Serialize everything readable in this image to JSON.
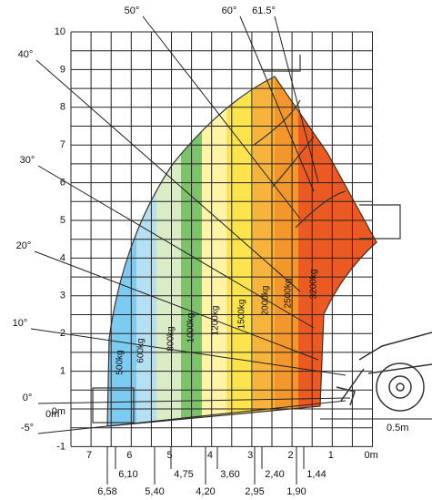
{
  "angles": [
    "50°",
    "60°",
    "61.5°",
    "40°",
    "30°",
    "20°",
    "10°",
    "0°",
    "-5°"
  ],
  "y_axis": [
    "10",
    "9",
    "8",
    "7",
    "6",
    "5",
    "4",
    "3",
    "2",
    "1",
    "0m",
    "-1"
  ],
  "x_axis": [
    "7",
    "6",
    "5",
    "4",
    "3",
    "2",
    "1",
    "0m"
  ],
  "loads": [
    "500kg",
    "600kg",
    "800kg",
    "1000kg",
    "1200kg",
    "1500kg",
    "2000kg",
    "2500kg",
    "3200kg"
  ],
  "reach_top": [
    "6,10",
    "4,75",
    "3,60",
    "2,40",
    "1,44"
  ],
  "reach_bottom": [
    "6,58",
    "5,40",
    "4,20",
    "2,95",
    "1,90"
  ],
  "left_offset": "0m",
  "right_offset": "0.5m"
}
